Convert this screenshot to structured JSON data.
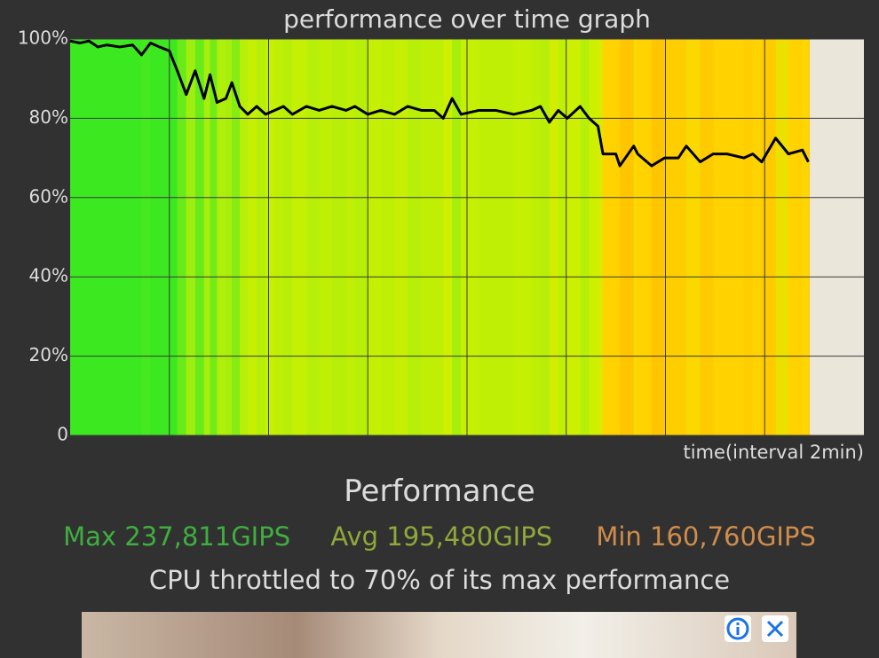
{
  "chart_data": {
    "type": "line",
    "title": "performance over time graph",
    "x_label": "time(interval 2min)",
    "x": [
      0,
      0.1,
      0.19,
      0.28,
      0.37,
      0.5,
      0.63,
      0.72,
      0.81,
      0.9,
      1,
      1.08,
      1.17,
      1.26,
      1.35,
      1.41,
      1.48,
      1.57,
      1.63,
      1.71,
      1.79,
      1.88,
      1.97,
      2.06,
      2.15,
      2.24,
      2.38,
      2.51,
      2.64,
      2.78,
      2.87,
      3,
      3.13,
      3.27,
      3.4,
      3.54,
      3.67,
      3.76,
      3.85,
      3.94,
      4.12,
      4.29,
      4.47,
      4.65,
      4.74,
      4.83,
      4.92,
      5.01,
      5.14,
      5.23,
      5.32,
      5.37,
      5.5,
      5.54,
      5.68,
      5.72,
      5.86,
      5.99,
      6.13,
      6.21,
      6.35,
      6.48,
      6.62,
      6.79,
      6.88,
      6.97,
      7.11,
      7.24,
      7.38,
      7.44
    ],
    "series": [
      {
        "name": "performance",
        "color": "#000000",
        "values": [
          99.5,
          99,
          99.5,
          98,
          98.5,
          98,
          98.5,
          96,
          99,
          98,
          97,
          92,
          86,
          92,
          85,
          91,
          84,
          85,
          89,
          83,
          81,
          83,
          81,
          82,
          83,
          81,
          83,
          82,
          83,
          82,
          83,
          81,
          82,
          81,
          83,
          82,
          82,
          80,
          85,
          81,
          82,
          82,
          81,
          82,
          83,
          79,
          82,
          80,
          83,
          80,
          78,
          71,
          71,
          68,
          73,
          71,
          68,
          70,
          70,
          73,
          69,
          71,
          71,
          70,
          71,
          69,
          75,
          71,
          72,
          69
        ]
      }
    ],
    "xlim": [
      0,
      8
    ],
    "xticks": [
      1,
      2,
      3,
      4,
      5,
      6,
      7
    ],
    "ylim": [
      0,
      100
    ],
    "yticks": [
      0,
      {
        "value": 20,
        "label": "20%"
      },
      {
        "value": 40,
        "label": "40%"
      },
      {
        "value": 60,
        "label": "60%"
      },
      {
        "value": 80,
        "label": "80%"
      },
      {
        "value": 100,
        "label": "100%"
      }
    ],
    "grid": true
  },
  "summary": {
    "heading": "Performance",
    "max": "Max 237,811GIPS",
    "avg": "Avg 195,480GIPS",
    "min": "Min 160,760GIPS",
    "note": "CPU throttled to 70% of its max performance"
  }
}
